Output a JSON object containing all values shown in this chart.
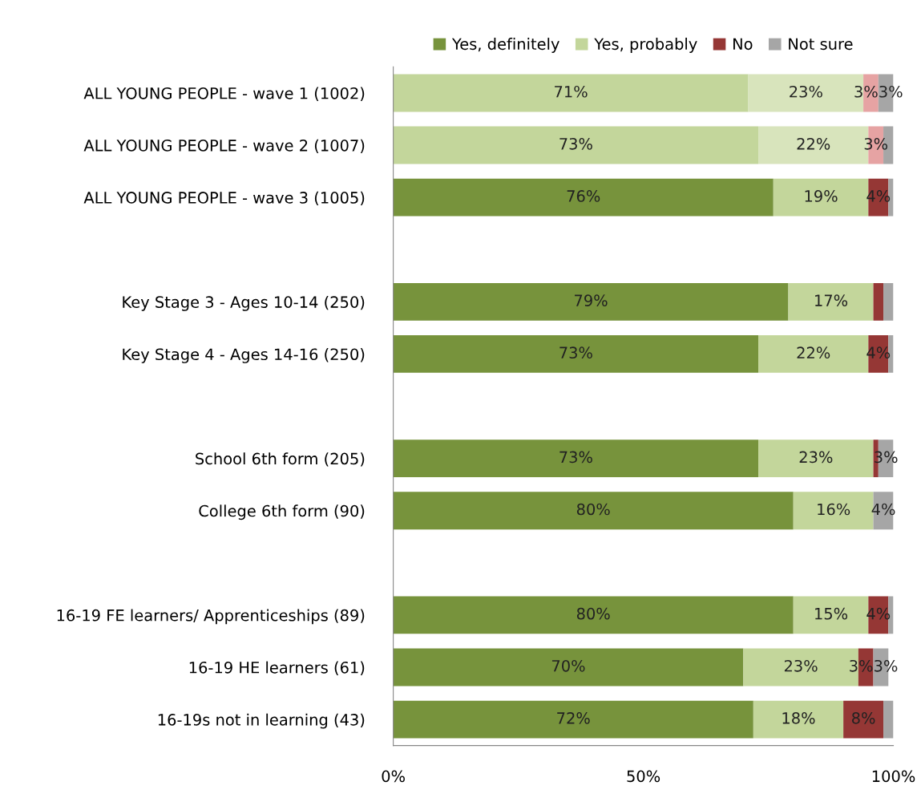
{
  "chart_data": {
    "type": "bar",
    "orientation": "horizontal",
    "stacked": true,
    "categories": [
      "ALL YOUNG PEOPLE - wave 1 (1002)",
      "ALL YOUNG PEOPLE - wave 2 (1007)",
      "ALL YOUNG PEOPLE - wave 3 (1005)",
      null,
      "Key Stage 3 - Ages 10-14 (250)",
      "Key Stage 4 - Ages 14-16 (250)",
      null,
      "School 6th form (205)",
      "College 6th form (90)",
      null,
      "16-19 FE learners/ Apprenticeships (89)",
      "16-19 HE learners (61)",
      "16-19s not in learning (43)"
    ],
    "series": [
      {
        "name": "Yes, definitely",
        "color": "#77933c",
        "colors": [
          "#c3d69b",
          "#c3d69b",
          "#77933c",
          null,
          "#77933c",
          "#77933c",
          null,
          "#77933c",
          "#77933c",
          null,
          "#77933c",
          "#77933c",
          "#77933c"
        ],
        "values": [
          71,
          73,
          76,
          null,
          79,
          73,
          null,
          73,
          80,
          null,
          80,
          70,
          72
        ],
        "value_labels": [
          "71%",
          "73%",
          "76%",
          null,
          "79%",
          "73%",
          null,
          "73%",
          "80%",
          null,
          "80%",
          "70%",
          "72%"
        ]
      },
      {
        "name": "Yes, probably",
        "color": "#c3d69b",
        "colors": [
          "#d8e4bc",
          "#d8e4bc",
          "#c3d69b",
          null,
          "#c3d69b",
          "#c3d69b",
          null,
          "#c3d69b",
          "#c3d69b",
          null,
          "#c3d69b",
          "#c3d69b",
          "#c3d69b"
        ],
        "values": [
          23,
          22,
          19,
          null,
          17,
          22,
          null,
          23,
          16,
          null,
          15,
          23,
          18
        ],
        "value_labels": [
          "23%",
          "22%",
          "19%",
          null,
          "17%",
          "22%",
          null,
          "23%",
          "16%",
          null,
          "15%",
          "23%",
          "18%"
        ]
      },
      {
        "name": "No",
        "color": "#953735",
        "colors": [
          "#e6a3a3",
          "#e6a3a3",
          "#953735",
          null,
          "#953735",
          "#953735",
          null,
          "#953735",
          "#953735",
          null,
          "#953735",
          "#953735",
          "#953735"
        ],
        "values": [
          3,
          3,
          4,
          null,
          2,
          4,
          null,
          1,
          null,
          null,
          4,
          3,
          8
        ],
        "value_labels": [
          "3%",
          "3%",
          "4%",
          null,
          null,
          "4%",
          null,
          null,
          null,
          null,
          "4%",
          "3%",
          "8%"
        ]
      },
      {
        "name": "Not sure",
        "color": "#a6a6a6",
        "colors": [
          "#a6a6a6",
          "#a6a6a6",
          "#a6a6a6",
          null,
          "#a6a6a6",
          "#a6a6a6",
          null,
          "#a6a6a6",
          "#a6a6a6",
          null,
          "#a6a6a6",
          "#a6a6a6",
          "#a6a6a6"
        ],
        "values": [
          3,
          2,
          1,
          null,
          2,
          1,
          null,
          3,
          4,
          null,
          1,
          3,
          2
        ],
        "value_labels": [
          "3%",
          null,
          null,
          null,
          null,
          null,
          null,
          "3%",
          "4%",
          null,
          null,
          "3%",
          null
        ]
      }
    ],
    "xlim": [
      0,
      100
    ],
    "xticks": [
      {
        "value": 0,
        "label": "0%"
      },
      {
        "value": 50,
        "label": "50%"
      },
      {
        "value": 100,
        "label": "100%"
      }
    ],
    "legend": "top",
    "grid": false
  }
}
